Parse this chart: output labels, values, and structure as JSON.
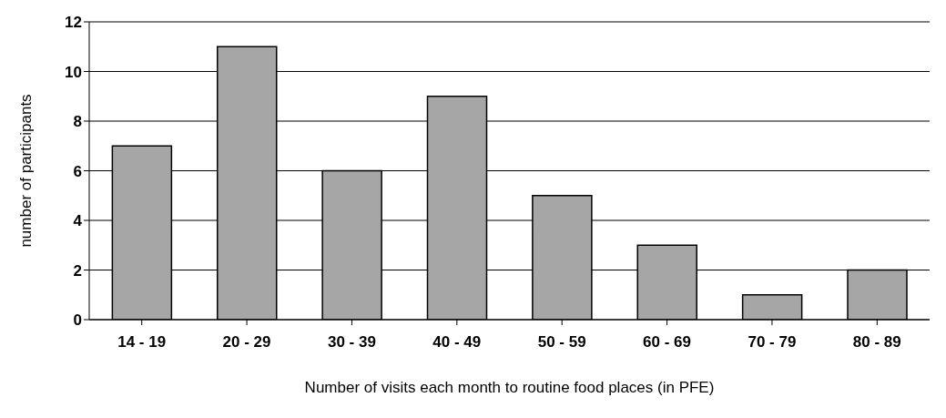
{
  "chart_data": {
    "type": "bar",
    "xlabel": "Number of visits each month to routine food places (in PFE)",
    "ylabel": "number of participants",
    "categories": [
      "14 - 19",
      "20 - 29",
      "30 - 39",
      "40 - 49",
      "50 - 59",
      "60 - 69",
      "70 - 79",
      "80 - 89"
    ],
    "values": [
      7,
      11,
      6,
      9,
      5,
      3,
      1,
      2
    ],
    "color": "#a6a6a6",
    "ylim": [
      0,
      12
    ],
    "yticks": [
      0,
      2,
      4,
      6,
      8,
      10,
      12
    ],
    "grid": "y"
  }
}
